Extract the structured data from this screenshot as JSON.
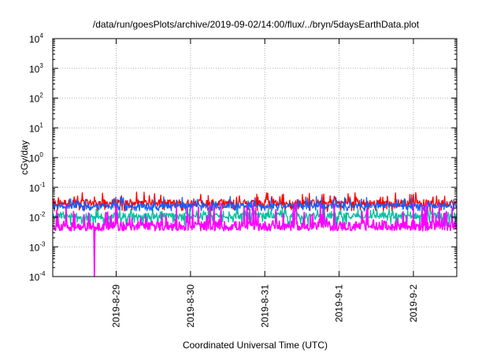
{
  "chart_data": {
    "type": "line",
    "title": "/data/run/goesPlots/archive/2019-09-02/14:00/flux/../bryn/5daysEarthData.plot",
    "xlabel": "Coordinated Universal Time (UTC)",
    "ylabel": "cGy/day",
    "y_scale": "log",
    "ylim": [
      0.0001,
      10000
    ],
    "y_tick_labels": [
      {
        "value": 0.0001,
        "base": "10",
        "exp": "-4"
      },
      {
        "value": 0.001,
        "base": "10",
        "exp": "-3"
      },
      {
        "value": 0.01,
        "base": "10",
        "exp": "-2"
      },
      {
        "value": 0.1,
        "base": "10",
        "exp": "-1"
      },
      {
        "value": 1,
        "base": "10",
        "exp": "0"
      },
      {
        "value": 10,
        "base": "10",
        "exp": "1"
      },
      {
        "value": 100,
        "base": "10",
        "exp": "2"
      },
      {
        "value": 1000,
        "base": "10",
        "exp": "3"
      },
      {
        "value": 10000,
        "base": "10",
        "exp": "4"
      }
    ],
    "xlim": [
      "2019-08-28T03:30",
      "2019-09-02T14:00"
    ],
    "x_tick_labels": [
      "2019-8-29",
      "2019-8-30",
      "2019-8-31",
      "2019-9-1",
      "2019-9-2"
    ],
    "x_tick_values": [
      "2019-08-29",
      "2019-08-30",
      "2019-08-31",
      "2019-09-01",
      "2019-09-02"
    ],
    "grid": true,
    "legend": "none",
    "series": [
      {
        "color": "#ff0000",
        "baseline": 0.03,
        "min": 0.015,
        "max": 0.07
      },
      {
        "color": "#00c0a0",
        "baseline": 0.011,
        "min": 0.005,
        "max": 0.02
      },
      {
        "color": "#1060ff",
        "baseline": 0.024,
        "min": 0.016,
        "max": 0.05
      },
      {
        "color": "#ff00ff",
        "baseline": 0.005,
        "min": 0.0035,
        "max": 0.03,
        "dip": {
          "x": "2019-08-28T17:00",
          "y": 0.0001
        }
      }
    ]
  }
}
